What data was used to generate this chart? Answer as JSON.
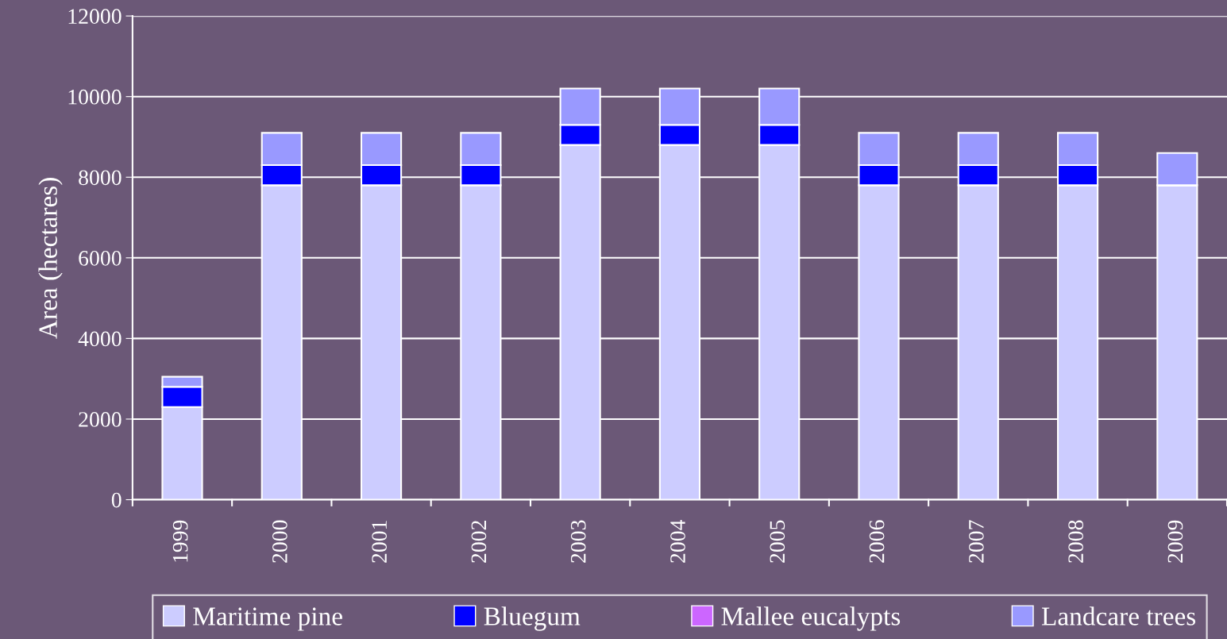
{
  "chart_data": {
    "type": "bar",
    "stacked": true,
    "ylabel": "Area (hectares)",
    "categories": [
      "1999",
      "2000",
      "2001",
      "2002",
      "2003",
      "2004",
      "2005",
      "2006",
      "2007",
      "2008",
      "2009"
    ],
    "series": [
      {
        "name": "Maritime pine",
        "color": "#ccccff",
        "values": [
          2300,
          7800,
          7800,
          7800,
          8800,
          8800,
          8800,
          7800,
          7800,
          7800,
          7800
        ]
      },
      {
        "name": "Bluegum",
        "color": "#0000ff",
        "values": [
          500,
          500,
          500,
          500,
          500,
          500,
          500,
          500,
          500,
          500,
          0
        ]
      },
      {
        "name": "Mallee eucalypts",
        "color": "#cc66ff",
        "values": [
          0,
          0,
          0,
          0,
          0,
          0,
          0,
          0,
          0,
          0,
          0
        ]
      },
      {
        "name": "Landcare trees",
        "color": "#9999ff",
        "values": [
          250,
          800,
          800,
          800,
          900,
          900,
          900,
          800,
          800,
          800,
          800
        ]
      }
    ],
    "ylim": [
      0,
      12000
    ],
    "yticks": [
      0,
      2000,
      4000,
      6000,
      8000,
      10000,
      12000
    ],
    "grid": "y",
    "legend": "bottom"
  }
}
